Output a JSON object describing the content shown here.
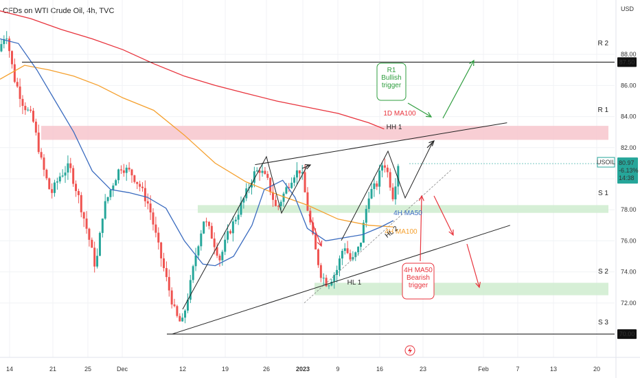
{
  "title": "CFDs on WTI Crude Oil, 4h, TVC",
  "currency": "USD",
  "chart_data": {
    "type": "candlestick",
    "symbol": "USOIL",
    "timeframe": "4h",
    "ylim": [
      68.5,
      91.5
    ],
    "y_ticks": [
      72.0,
      74.0,
      76.0,
      78.0,
      80.0,
      82.0,
      84.0,
      86.0,
      88.0
    ],
    "x_ticks": [
      "14",
      "21",
      "25",
      "Dec",
      "12",
      "19",
      "26",
      "2023",
      "9",
      "16",
      "23",
      "Feb",
      "7",
      "13",
      "20"
    ],
    "last_price": {
      "value": 80.97,
      "label": "USOIL",
      "change": "-6.13%",
      "countdown": "14:38"
    },
    "price_tags": [
      87.5,
      70.0
    ],
    "levels": [
      {
        "label": "R 2",
        "value": 87.5,
        "type": "line"
      },
      {
        "label": "R 1",
        "low": 82.5,
        "high": 83.4,
        "type": "zone",
        "color": "#f7c6cc"
      },
      {
        "label": "S 1",
        "low": 77.8,
        "high": 78.3,
        "type": "zone",
        "color": "#cfeccf"
      },
      {
        "label": "S 2",
        "low": 72.5,
        "high": 73.3,
        "type": "zone",
        "color": "#cfeccf"
      },
      {
        "label": "S 3",
        "value": 70.0,
        "type": "line"
      }
    ],
    "trendlines": [
      {
        "label": "HH 1",
        "from": [
          0.415,
          80.9
        ],
        "to": [
          0.825,
          83.6
        ]
      },
      {
        "label": "HL 1",
        "from": [
          0.28,
          70.0
        ],
        "to": [
          0.83,
          77.0
        ]
      },
      {
        "label": "HL 2",
        "from": [
          0.495,
          72.0
        ],
        "to": [
          0.735,
          80.6
        ]
      }
    ],
    "moving_averages": [
      {
        "name": "1D MA100",
        "color": "#e8333c",
        "points": [
          [
            0.0,
            90.8
          ],
          [
            0.05,
            90.3
          ],
          [
            0.1,
            89.6
          ],
          [
            0.15,
            89.0
          ],
          [
            0.2,
            88.3
          ],
          [
            0.25,
            87.4
          ],
          [
            0.3,
            86.6
          ],
          [
            0.35,
            86.0
          ],
          [
            0.4,
            85.5
          ],
          [
            0.45,
            85.0
          ],
          [
            0.5,
            84.6
          ],
          [
            0.55,
            84.2
          ],
          [
            0.6,
            83.6
          ],
          [
            0.625,
            83.2
          ]
        ]
      },
      {
        "name": "4H MA100",
        "color": "#f5a02e",
        "points": [
          [
            0.0,
            86.4
          ],
          [
            0.04,
            87.3
          ],
          [
            0.08,
            87.0
          ],
          [
            0.12,
            86.6
          ],
          [
            0.16,
            86.0
          ],
          [
            0.2,
            85.2
          ],
          [
            0.25,
            84.4
          ],
          [
            0.3,
            82.8
          ],
          [
            0.35,
            81.0
          ],
          [
            0.4,
            79.8
          ],
          [
            0.45,
            79.0
          ],
          [
            0.5,
            78.3
          ],
          [
            0.55,
            77.4
          ],
          [
            0.6,
            77.0
          ],
          [
            0.64,
            76.9
          ]
        ]
      },
      {
        "name": "4H MA50",
        "color": "#3a6bbf",
        "points": [
          [
            0.0,
            89.0
          ],
          [
            0.03,
            88.7
          ],
          [
            0.06,
            87.0
          ],
          [
            0.09,
            85.0
          ],
          [
            0.12,
            83.0
          ],
          [
            0.15,
            80.5
          ],
          [
            0.18,
            79.3
          ],
          [
            0.21,
            79.1
          ],
          [
            0.24,
            78.8
          ],
          [
            0.27,
            78.1
          ],
          [
            0.3,
            76.0
          ],
          [
            0.33,
            74.5
          ],
          [
            0.35,
            74.4
          ],
          [
            0.38,
            75.0
          ],
          [
            0.41,
            77.0
          ],
          [
            0.43,
            79.3
          ],
          [
            0.46,
            79.9
          ],
          [
            0.48,
            78.8
          ],
          [
            0.5,
            76.8
          ],
          [
            0.53,
            76.0
          ],
          [
            0.56,
            76.2
          ],
          [
            0.59,
            76.4
          ],
          [
            0.62,
            76.9
          ],
          [
            0.64,
            77.3
          ]
        ]
      }
    ],
    "annotations": [
      {
        "text": "R1\nBullish\ntrigger",
        "color": "#2e9d3e"
      },
      {
        "text": "4H MA50\nBearish\ntrigger",
        "color": "#e8333c"
      },
      {
        "text": "1D MA100",
        "color": "#e8333c"
      },
      {
        "text": "4H MA50",
        "color": "#3a6bbf"
      },
      {
        "text": "4H MA100",
        "color": "#f5a02e"
      }
    ]
  }
}
